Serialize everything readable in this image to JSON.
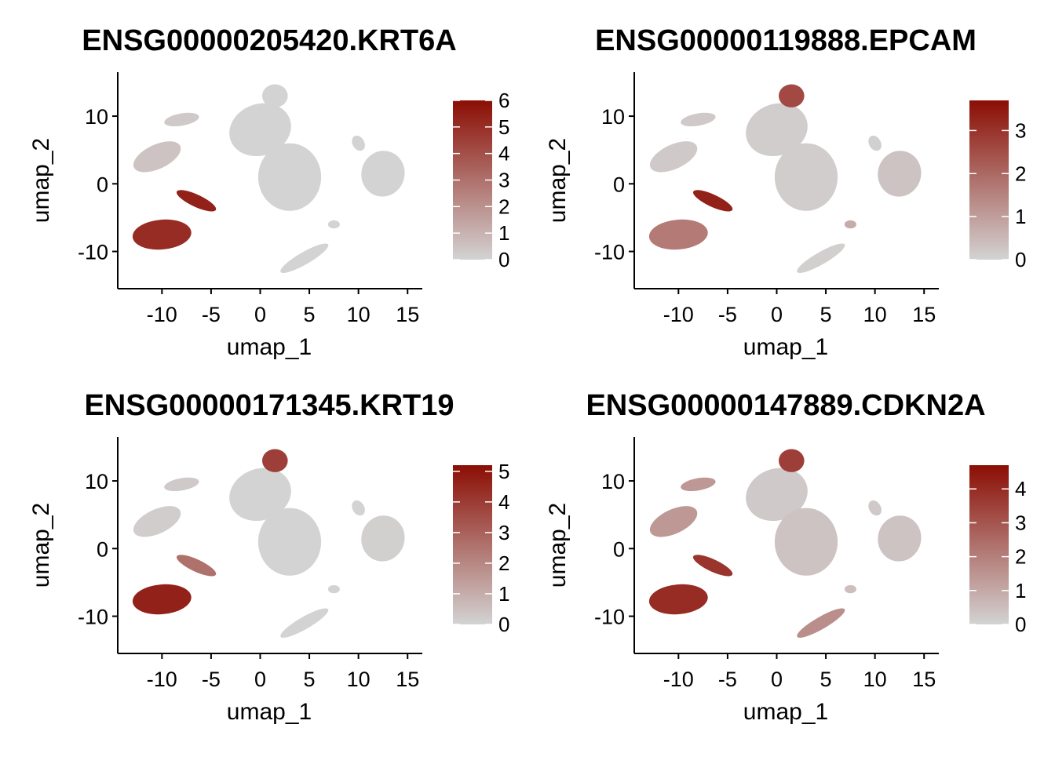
{
  "chart_data": [
    {
      "type": "scatter",
      "title": "ENSG00000205420.KRT6A",
      "xlabel": "umap_1",
      "ylabel": "umap_2",
      "xlim": [
        -14.5,
        16.5
      ],
      "ylim": [
        -15.5,
        16.5
      ],
      "xticks": [
        "-10",
        "-5",
        "0",
        "5",
        "10",
        "15"
      ],
      "yticks": [
        "10",
        "0",
        "-10"
      ],
      "colorbar": {
        "min": 0,
        "max": 6.0,
        "ticks": [
          "6",
          "5",
          "4",
          "3",
          "2",
          "1",
          "0"
        ],
        "low_color": "#d3d3d3",
        "high_color": "#8b0e04"
      },
      "clusters": [
        {
          "x": 0,
          "y": 8,
          "level": 0.0
        },
        {
          "x": 3,
          "y": 1,
          "level": 0.0
        },
        {
          "x": 1.5,
          "y": 13,
          "level": 0.0
        },
        {
          "x": -10.5,
          "y": 4,
          "level": 0.08
        },
        {
          "x": -8,
          "y": 9.5,
          "level": 0.05
        },
        {
          "x": -10,
          "y": -7.5,
          "level": 0.85
        },
        {
          "x": -6.5,
          "y": -2.5,
          "level": 0.9
        },
        {
          "x": 12.5,
          "y": 1.5,
          "level": 0.0
        },
        {
          "x": 4.5,
          "y": -11,
          "level": 0.0
        },
        {
          "x": 10,
          "y": 6,
          "level": 0.0
        },
        {
          "x": 7.5,
          "y": -6,
          "level": 0.0
        }
      ]
    },
    {
      "type": "scatter",
      "title": "ENSG00000119888.EPCAM",
      "xlabel": "umap_1",
      "ylabel": "umap_2",
      "xlim": [
        -14.5,
        16.5
      ],
      "ylim": [
        -15.5,
        16.5
      ],
      "xticks": [
        "-10",
        "-5",
        "0",
        "5",
        "10",
        "15"
      ],
      "yticks": [
        "10",
        "0",
        "-10"
      ],
      "colorbar": {
        "min": 0,
        "max": 3.7,
        "ticks": [
          "3",
          "2",
          "1",
          "0"
        ],
        "low_color": "#d3d3d3",
        "high_color": "#8b0e04"
      },
      "clusters": [
        {
          "x": 0,
          "y": 8,
          "level": 0.03
        },
        {
          "x": 3,
          "y": 1,
          "level": 0.03
        },
        {
          "x": 1.5,
          "y": 13,
          "level": 0.7
        },
        {
          "x": -10.5,
          "y": 4,
          "level": 0.05
        },
        {
          "x": -8,
          "y": 9.5,
          "level": 0.05
        },
        {
          "x": -10,
          "y": -7.5,
          "level": 0.45
        },
        {
          "x": -6.5,
          "y": -2.5,
          "level": 0.9
        },
        {
          "x": 12.5,
          "y": 1.5,
          "level": 0.08
        },
        {
          "x": 4.5,
          "y": -11,
          "level": 0.02
        },
        {
          "x": 10,
          "y": 6,
          "level": 0.02
        },
        {
          "x": 7.5,
          "y": -6,
          "level": 0.2
        }
      ]
    },
    {
      "type": "scatter",
      "title": "ENSG00000171345.KRT19",
      "xlabel": "umap_1",
      "ylabel": "umap_2",
      "xlim": [
        -14.5,
        16.5
      ],
      "ylim": [
        -15.5,
        16.5
      ],
      "xticks": [
        "-10",
        "-5",
        "0",
        "5",
        "10",
        "15"
      ],
      "yticks": [
        "10",
        "0",
        "-10"
      ],
      "colorbar": {
        "min": 0,
        "max": 5.2,
        "ticks": [
          "5",
          "4",
          "3",
          "2",
          "1",
          "0"
        ],
        "low_color": "#d3d3d3",
        "high_color": "#8b0e04"
      },
      "clusters": [
        {
          "x": 0,
          "y": 8,
          "level": 0.0
        },
        {
          "x": 3,
          "y": 1,
          "level": 0.0
        },
        {
          "x": 1.5,
          "y": 13,
          "level": 0.75
        },
        {
          "x": -10.5,
          "y": 4,
          "level": 0.03
        },
        {
          "x": -8,
          "y": 9.5,
          "level": 0.05
        },
        {
          "x": -10,
          "y": -7.5,
          "level": 0.9
        },
        {
          "x": -6.5,
          "y": -2.5,
          "level": 0.5
        },
        {
          "x": 12.5,
          "y": 1.5,
          "level": 0.02
        },
        {
          "x": 4.5,
          "y": -11,
          "level": 0.0
        },
        {
          "x": 10,
          "y": 6,
          "level": 0.0
        },
        {
          "x": 7.5,
          "y": -6,
          "level": 0.0
        }
      ]
    },
    {
      "type": "scatter",
      "title": "ENSG00000147889.CDKN2A",
      "xlabel": "umap_1",
      "ylabel": "umap_2",
      "xlim": [
        -14.5,
        16.5
      ],
      "ylim": [
        -15.5,
        16.5
      ],
      "xticks": [
        "-10",
        "-5",
        "0",
        "5",
        "10",
        "15"
      ],
      "yticks": [
        "10",
        "0",
        "-10"
      ],
      "colorbar": {
        "min": 0,
        "max": 4.7,
        "ticks": [
          "4",
          "3",
          "2",
          "1",
          "0"
        ],
        "low_color": "#d3d3d3",
        "high_color": "#8b0e04"
      },
      "clusters": [
        {
          "x": 0,
          "y": 8,
          "level": 0.05
        },
        {
          "x": 3,
          "y": 1,
          "level": 0.08
        },
        {
          "x": 1.5,
          "y": 13,
          "level": 0.75
        },
        {
          "x": -10.5,
          "y": 4,
          "level": 0.3
        },
        {
          "x": -8,
          "y": 9.5,
          "level": 0.3
        },
        {
          "x": -10,
          "y": -7.5,
          "level": 0.85
        },
        {
          "x": -6.5,
          "y": -2.5,
          "level": 0.8
        },
        {
          "x": 12.5,
          "y": 1.5,
          "level": 0.08
        },
        {
          "x": 4.5,
          "y": -11,
          "level": 0.35
        },
        {
          "x": 10,
          "y": 6,
          "level": 0.05
        },
        {
          "x": 7.5,
          "y": -6,
          "level": 0.1
        }
      ]
    }
  ]
}
